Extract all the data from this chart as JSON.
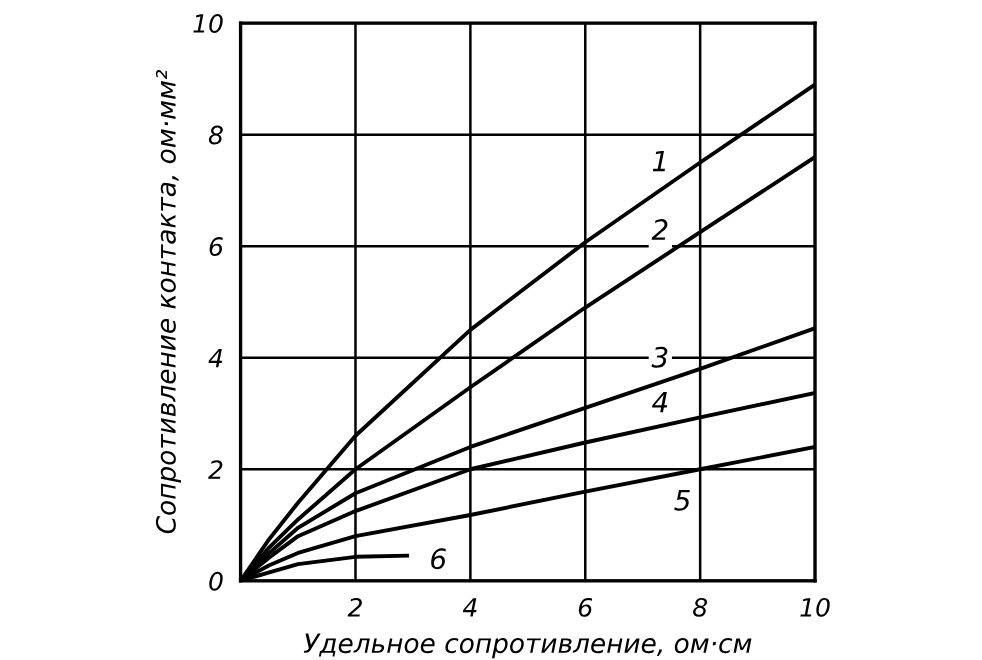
{
  "chart_data": {
    "type": "line",
    "xlabel": "Удельное сопротивление, ом·см",
    "ylabel": "Сопротивление контакта, ом·мм²",
    "xlim": [
      0,
      10
    ],
    "ylim": [
      0,
      10
    ],
    "xticks": [
      {
        "value": 0,
        "label": null
      },
      2,
      4,
      6,
      8,
      10
    ],
    "yticks": [
      0,
      2,
      4,
      6,
      8,
      10
    ],
    "grid": true,
    "line_style": "solid",
    "marker": "none",
    "series": [
      {
        "name": "1",
        "color": "#000000",
        "x": [
          0,
          0.5,
          1,
          2,
          4,
          6,
          8,
          10
        ],
        "values": [
          0,
          0.75,
          1.4,
          2.6,
          4.5,
          6.07,
          7.5,
          8.9
        ]
      },
      {
        "name": "2",
        "color": "#000000",
        "x": [
          0,
          0.5,
          1,
          2,
          4,
          6,
          8,
          10
        ],
        "values": [
          0,
          0.6,
          1.1,
          2.0,
          3.47,
          4.9,
          6.25,
          7.6
        ]
      },
      {
        "name": "3",
        "color": "#000000",
        "x": [
          0,
          0.5,
          1,
          2,
          4,
          6,
          8,
          10
        ],
        "values": [
          0,
          0.5,
          0.95,
          1.57,
          2.4,
          3.1,
          3.8,
          4.53
        ]
      },
      {
        "name": "4",
        "color": "#000000",
        "x": [
          0,
          0.5,
          1,
          2,
          4,
          6,
          8,
          10
        ],
        "values": [
          0,
          0.42,
          0.8,
          1.25,
          2.0,
          2.48,
          2.93,
          3.37
        ]
      },
      {
        "name": "5",
        "color": "#000000",
        "x": [
          0,
          0.5,
          1,
          2,
          4,
          6,
          8,
          10
        ],
        "values": [
          0,
          0.28,
          0.5,
          0.8,
          1.18,
          1.6,
          2.0,
          2.4
        ]
      },
      {
        "name": "6",
        "color": "#000000",
        "x": [
          0,
          0.5,
          1,
          2,
          2.9
        ],
        "values": [
          0,
          0.15,
          0.3,
          0.43,
          0.45
        ]
      }
    ]
  }
}
